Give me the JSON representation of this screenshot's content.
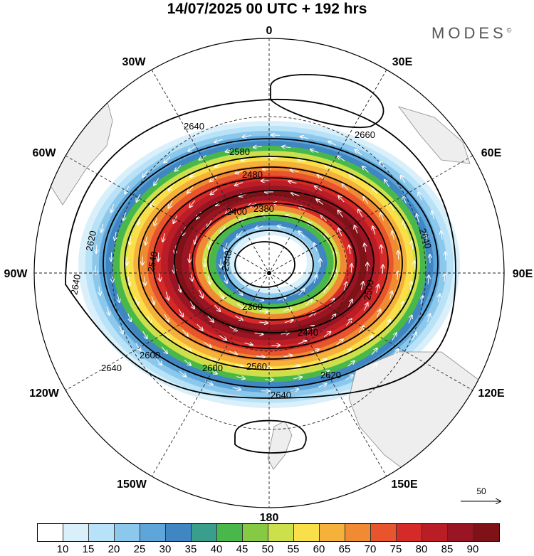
{
  "title": "14/07/2025  00 UTC  + 192 hrs",
  "brand": "MODES",
  "brand_mark": "©",
  "longitude_labels": [
    "0",
    "30E",
    "60E",
    "90E",
    "120E",
    "150E",
    "180",
    "150W",
    "120W",
    "90W",
    "60W",
    "30W"
  ],
  "contour_labels": [
    "2640",
    "2660",
    "2620",
    "2600",
    "2580",
    "2480",
    "2400",
    "2380",
    "2340",
    "2360",
    "2440",
    "2500",
    "2560",
    "2540"
  ],
  "vector_scale": {
    "value": "50"
  },
  "colorbar": {
    "ticks": [
      "10",
      "15",
      "20",
      "25",
      "30",
      "35",
      "40",
      "45",
      "50",
      "55",
      "60",
      "65",
      "70",
      "75",
      "80",
      "85",
      "90"
    ],
    "colors": [
      "#ffffff",
      "#d9f0fb",
      "#b7e2f7",
      "#8cc8ec",
      "#5ea6da",
      "#3f86c3",
      "#3a9e8c",
      "#49b84a",
      "#86c943",
      "#cbe04a",
      "#f9e04a",
      "#f5b13a",
      "#f08a33",
      "#e8542b",
      "#d52a27",
      "#bb1d27",
      "#991523",
      "#7e1216"
    ]
  }
}
